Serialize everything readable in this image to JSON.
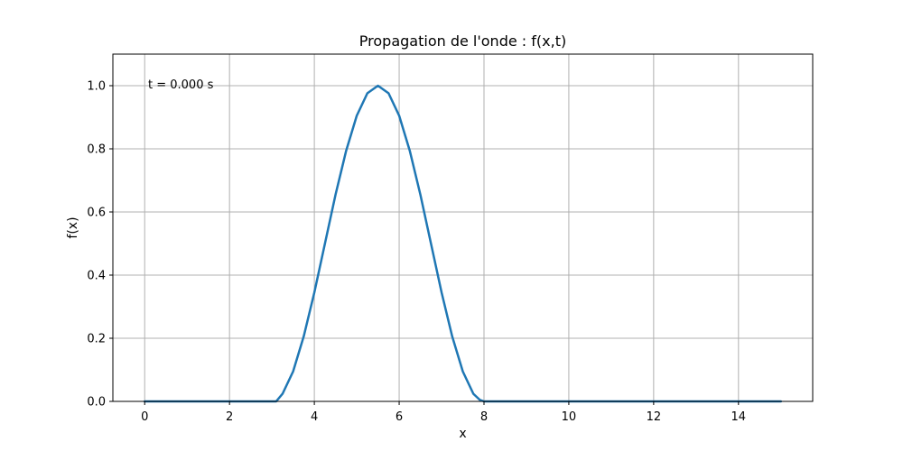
{
  "chart_data": {
    "type": "line",
    "title": "Propagation de l'onde : f(x,t)",
    "xlabel": "x",
    "ylabel": "f(x)",
    "xlim": [
      -0.75,
      15.75
    ],
    "ylim": [
      0.0,
      1.1
    ],
    "xticks": [
      0,
      2,
      4,
      6,
      8,
      10,
      12,
      14
    ],
    "xtick_labels": [
      "0",
      "2",
      "4",
      "6",
      "8",
      "10",
      "12",
      "14"
    ],
    "yticks": [
      0.0,
      0.2,
      0.4,
      0.6,
      0.8,
      1.0
    ],
    "ytick_labels": [
      "0.0",
      "0.2",
      "0.4",
      "0.6",
      "0.8",
      "1.0"
    ],
    "grid": true,
    "annotation": "t = 0.000 s",
    "series": [
      {
        "color": "#1f77b4",
        "x": [
          0,
          0.5,
          1,
          1.5,
          2,
          2.5,
          3,
          3.1,
          3.25,
          3.5,
          3.75,
          4,
          4.25,
          4.5,
          4.75,
          5,
          5.25,
          5.5,
          5.75,
          6,
          6.25,
          6.5,
          6.75,
          7,
          7.25,
          7.5,
          7.75,
          7.9,
          8,
          9,
          10,
          11,
          12,
          13,
          14,
          15
        ],
        "y": [
          0,
          0,
          0,
          0,
          0,
          0,
          0,
          0.0,
          0.024,
          0.095,
          0.206,
          0.345,
          0.5,
          0.655,
          0.794,
          0.905,
          0.976,
          1.0,
          0.976,
          0.905,
          0.794,
          0.655,
          0.5,
          0.345,
          0.206,
          0.095,
          0.024,
          0.005,
          0,
          0,
          0,
          0,
          0,
          0,
          0,
          0
        ]
      }
    ]
  }
}
